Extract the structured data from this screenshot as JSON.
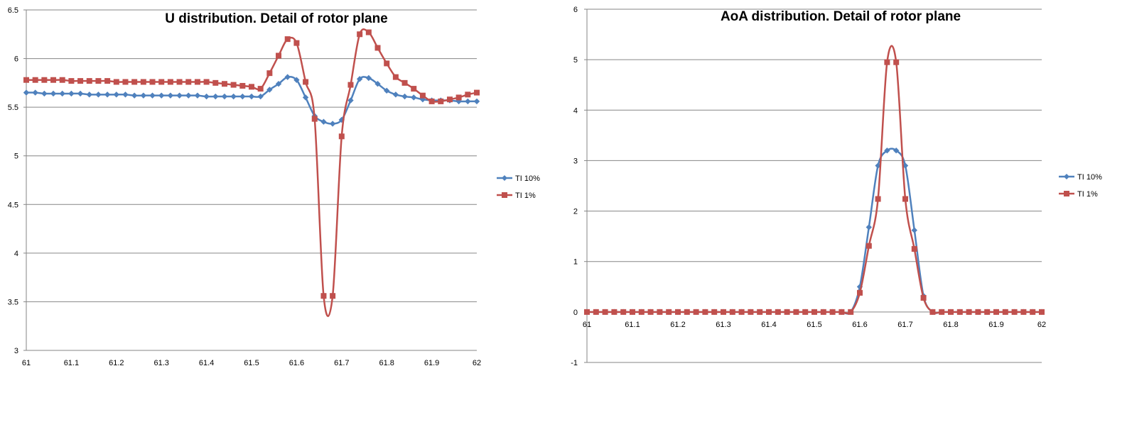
{
  "chart_data": [
    {
      "type": "line",
      "title": "U distribution. Detail of rotor plane",
      "xlabel": "",
      "ylabel": "",
      "xlim": [
        61,
        62
      ],
      "ylim": [
        3,
        6.5
      ],
      "x_ticks": [
        "61",
        "61.1",
        "61.2",
        "61.3",
        "61.4",
        "61.5",
        "61.6",
        "61.7",
        "61.8",
        "61.9",
        "62"
      ],
      "y_ticks": [
        "3",
        "3.5",
        "4",
        "4.5",
        "5",
        "5.5",
        "6",
        "6.5"
      ],
      "grid": "horizontal",
      "legend_position": "right",
      "x": [
        61.0,
        61.02,
        61.04,
        61.06,
        61.08,
        61.1,
        61.12,
        61.14,
        61.16,
        61.18,
        61.2,
        61.22,
        61.24,
        61.26,
        61.28,
        61.3,
        61.32,
        61.34,
        61.36,
        61.38,
        61.4,
        61.42,
        61.44,
        61.46,
        61.48,
        61.5,
        61.52,
        61.54,
        61.56,
        61.58,
        61.6,
        61.62,
        61.64,
        61.66,
        61.68,
        61.7,
        61.72,
        61.74,
        61.76,
        61.78,
        61.8,
        61.82,
        61.84,
        61.86,
        61.88,
        61.9,
        61.92,
        61.94,
        61.96,
        61.98,
        62.0
      ],
      "series": [
        {
          "name": "TI 10%",
          "color": "#4F81BD",
          "marker": "diamond",
          "values": [
            5.65,
            5.65,
            5.64,
            5.64,
            5.64,
            5.64,
            5.64,
            5.63,
            5.63,
            5.63,
            5.63,
            5.63,
            5.62,
            5.62,
            5.62,
            5.62,
            5.62,
            5.62,
            5.62,
            5.62,
            5.61,
            5.61,
            5.61,
            5.61,
            5.61,
            5.61,
            5.61,
            5.68,
            5.74,
            5.81,
            5.78,
            5.6,
            5.41,
            5.35,
            5.33,
            5.37,
            5.57,
            5.79,
            5.8,
            5.74,
            5.67,
            5.63,
            5.61,
            5.6,
            5.58,
            5.57,
            5.57,
            5.57,
            5.56,
            5.56,
            5.56
          ]
        },
        {
          "name": "TI 1%",
          "color": "#C0504D",
          "marker": "square",
          "values": [
            5.78,
            5.78,
            5.78,
            5.78,
            5.78,
            5.77,
            5.77,
            5.77,
            5.77,
            5.77,
            5.76,
            5.76,
            5.76,
            5.76,
            5.76,
            5.76,
            5.76,
            5.76,
            5.76,
            5.76,
            5.76,
            5.75,
            5.74,
            5.73,
            5.72,
            5.71,
            5.69,
            5.85,
            6.03,
            6.2,
            6.16,
            5.76,
            5.38,
            3.56,
            3.56,
            5.2,
            5.73,
            6.25,
            6.27,
            6.11,
            5.95,
            5.81,
            5.75,
            5.69,
            5.62,
            5.56,
            5.56,
            5.58,
            5.6,
            5.63,
            5.65
          ]
        }
      ]
    },
    {
      "type": "line",
      "title": "AoA distribution. Detail of rotor plane",
      "xlabel": "",
      "ylabel": "",
      "xlim": [
        61,
        62
      ],
      "ylim": [
        -1,
        6
      ],
      "x_ticks": [
        "61",
        "61.1",
        "61.2",
        "61.3",
        "61.4",
        "61.5",
        "61.6",
        "61.7",
        "61.8",
        "61.9",
        "62"
      ],
      "y_ticks": [
        "-1",
        "0",
        "1",
        "2",
        "3",
        "4",
        "5",
        "6"
      ],
      "grid": "horizontal",
      "legend_position": "right",
      "x": [
        61.0,
        61.02,
        61.04,
        61.06,
        61.08,
        61.1,
        61.12,
        61.14,
        61.16,
        61.18,
        61.2,
        61.22,
        61.24,
        61.26,
        61.28,
        61.3,
        61.32,
        61.34,
        61.36,
        61.38,
        61.4,
        61.42,
        61.44,
        61.46,
        61.48,
        61.5,
        61.52,
        61.54,
        61.56,
        61.58,
        61.6,
        61.62,
        61.64,
        61.66,
        61.68,
        61.7,
        61.72,
        61.74,
        61.76,
        61.78,
        61.8,
        61.82,
        61.84,
        61.86,
        61.88,
        61.9,
        61.92,
        61.94,
        61.96,
        61.98,
        62.0
      ],
      "series": [
        {
          "name": "TI 10%",
          "color": "#4F81BD",
          "marker": "diamond",
          "values": [
            0,
            0,
            0,
            0,
            0,
            0,
            0,
            0,
            0,
            0,
            0,
            0,
            0,
            0,
            0,
            0,
            0,
            0,
            0,
            0,
            0,
            0,
            0,
            0,
            0,
            0,
            0,
            0,
            0,
            0,
            0.5,
            1.68,
            2.9,
            3.2,
            3.2,
            2.9,
            1.62,
            0.32,
            0,
            0,
            0,
            0,
            0,
            0,
            0,
            0,
            0,
            0,
            0,
            0,
            0
          ]
        },
        {
          "name": "TI 1%",
          "color": "#C0504D",
          "marker": "square",
          "values": [
            0,
            0,
            0,
            0,
            0,
            0,
            0,
            0,
            0,
            0,
            0,
            0,
            0,
            0,
            0,
            0,
            0,
            0,
            0,
            0,
            0,
            0,
            0,
            0,
            0,
            0,
            0,
            0,
            0,
            0,
            0.38,
            1.31,
            2.24,
            4.95,
            4.95,
            2.24,
            1.25,
            0.28,
            0,
            0,
            0,
            0,
            0,
            0,
            0,
            0,
            0,
            0,
            0,
            0,
            0
          ]
        }
      ]
    }
  ]
}
